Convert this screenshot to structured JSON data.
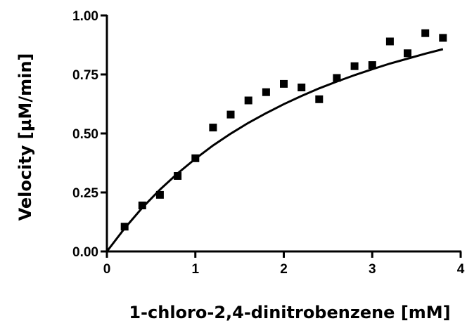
{
  "chart_data": {
    "type": "scatter",
    "title": "",
    "xlabel": "1-chloro-2,4-dinitrobenzene [mM]",
    "ylabel": "Velocity [µM/min]",
    "xlim": [
      0,
      4
    ],
    "ylim": [
      0,
      1.0
    ],
    "x_ticks": [
      "0",
      "1",
      "2",
      "3",
      "4"
    ],
    "y_ticks": [
      "0.00",
      "0.25",
      "0.50",
      "0.75",
      "1.00"
    ],
    "grid": false,
    "series": [
      {
        "marker": "square",
        "color": "#000000",
        "x": [
          0.2,
          0.4,
          0.6,
          0.8,
          1.0,
          1.2,
          1.4,
          1.6,
          1.8,
          2.0,
          2.2,
          2.4,
          2.6,
          2.8,
          3.0,
          3.2,
          3.4,
          3.6,
          3.8
        ],
        "y": [
          0.105,
          0.195,
          0.24,
          0.32,
          0.395,
          0.525,
          0.58,
          0.64,
          0.675,
          0.71,
          0.695,
          0.645,
          0.735,
          0.785,
          0.79,
          0.89,
          0.84,
          0.925,
          0.905
        ]
      }
    ],
    "fit": {
      "type": "line",
      "color": "#000000",
      "x": [
        0,
        0.2,
        0.4,
        0.6,
        0.8,
        1.0,
        1.2,
        1.4,
        1.6,
        1.8,
        2.0,
        2.2,
        2.4,
        2.6,
        2.8,
        3.0,
        3.2,
        3.4,
        3.6,
        3.8
      ],
      "y": [
        0,
        0.098,
        0.185,
        0.262,
        0.331,
        0.393,
        0.449,
        0.499,
        0.545,
        0.586,
        0.624,
        0.659,
        0.691,
        0.72,
        0.747,
        0.772,
        0.796,
        0.817,
        0.838,
        0.857
      ]
    }
  }
}
